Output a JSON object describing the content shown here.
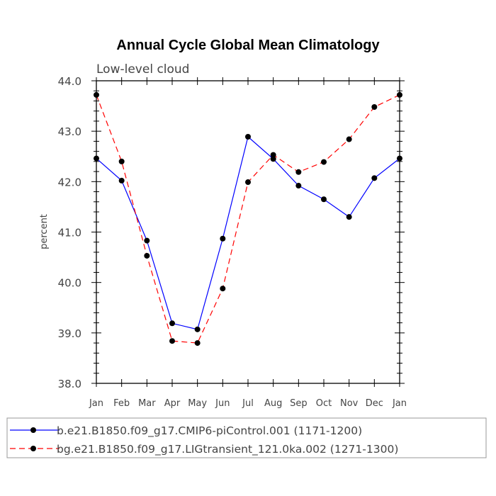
{
  "chart_data": {
    "type": "line",
    "title": "Annual Cycle Global Mean Climatology",
    "subtitle": "Low-level cloud",
    "xlabel": "",
    "ylabel": "percent",
    "ylim": [
      38.0,
      44.0
    ],
    "categories": [
      "Jan",
      "Feb",
      "Mar",
      "Apr",
      "May",
      "Jun",
      "Jul",
      "Aug",
      "Sep",
      "Oct",
      "Nov",
      "Dec",
      "Jan"
    ],
    "yticks": [
      "38.0",
      "39.0",
      "40.0",
      "41.0",
      "42.0",
      "43.0",
      "44.0"
    ],
    "grid": false,
    "legend_position": "bottom",
    "series": [
      {
        "name": "b.e21.B1850.f09_g17.CMIP6-piControl.001 (1171-1200)",
        "color": "#0000ff",
        "line_style": "solid",
        "values": [
          42.46,
          42.02,
          40.83,
          39.19,
          39.07,
          40.87,
          42.89,
          42.45,
          41.92,
          41.65,
          41.3,
          42.07,
          42.46
        ]
      },
      {
        "name": "bg.e21.B1850.f09_g17.LIGtransient_121.0ka.002 (1271-1300)",
        "color": "#ff0000",
        "line_style": "dashed",
        "values": [
          43.72,
          42.4,
          40.53,
          38.84,
          38.8,
          39.88,
          41.99,
          42.53,
          42.19,
          42.39,
          42.84,
          43.48,
          43.72
        ]
      }
    ]
  }
}
